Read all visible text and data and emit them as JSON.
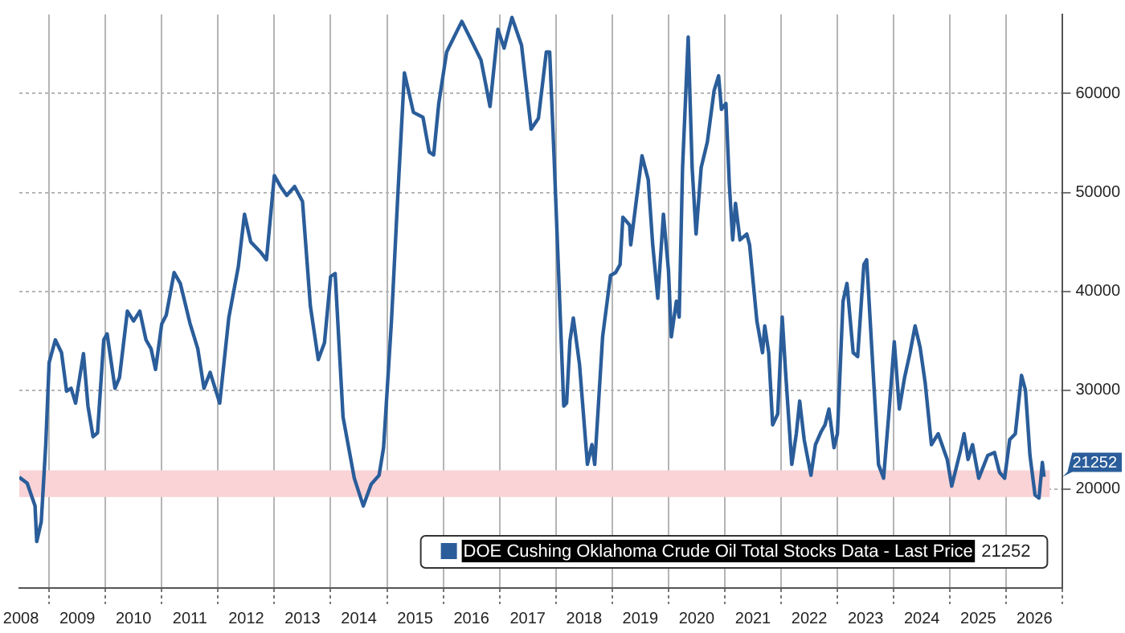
{
  "chart_data": {
    "type": "line",
    "x": [
      2008.47,
      2008.61,
      2008.75,
      2008.78,
      2008.86,
      2008.94,
      2009.0,
      2009.11,
      2009.22,
      2009.31,
      2009.39,
      2009.47,
      2009.61,
      2009.69,
      2009.78,
      2009.86,
      2009.97,
      2010.03,
      2010.17,
      2010.25,
      2010.39,
      2010.5,
      2010.61,
      2010.72,
      2010.81,
      2010.89,
      2011.0,
      2011.08,
      2011.22,
      2011.33,
      2011.5,
      2011.64,
      2011.75,
      2011.86,
      2012.03,
      2012.19,
      2012.36,
      2012.47,
      2012.58,
      2012.75,
      2012.86,
      2013.0,
      2013.11,
      2013.22,
      2013.36,
      2013.5,
      2013.64,
      2013.78,
      2013.89,
      2014.0,
      2014.08,
      2014.22,
      2014.42,
      2014.58,
      2014.72,
      2014.86,
      2014.94,
      2015.08,
      2015.19,
      2015.31,
      2015.47,
      2015.64,
      2015.75,
      2015.83,
      2015.92,
      2016.06,
      2016.19,
      2016.33,
      2016.47,
      2016.67,
      2016.83,
      2016.97,
      2017.08,
      2017.22,
      2017.39,
      2017.56,
      2017.69,
      2017.83,
      2017.89,
      2017.97,
      2018.14,
      2018.19,
      2018.25,
      2018.31,
      2018.42,
      2018.56,
      2018.64,
      2018.69,
      2018.83,
      2018.97,
      2019.06,
      2019.14,
      2019.19,
      2019.31,
      2019.33,
      2019.44,
      2019.53,
      2019.64,
      2019.72,
      2019.81,
      2019.91,
      2020.0,
      2020.05,
      2020.14,
      2020.19,
      2020.25,
      2020.35,
      2020.42,
      2020.49,
      2020.58,
      2020.69,
      2020.81,
      2020.89,
      2020.94,
      2021.02,
      2021.08,
      2021.14,
      2021.19,
      2021.27,
      2021.39,
      2021.44,
      2021.57,
      2021.67,
      2021.71,
      2021.78,
      2021.85,
      2021.94,
      2022.02,
      2022.08,
      2022.19,
      2022.27,
      2022.33,
      2022.41,
      2022.53,
      2022.61,
      2022.71,
      2022.78,
      2022.85,
      2022.94,
      2023.0,
      2023.1,
      2023.17,
      2023.28,
      2023.36,
      2023.47,
      2023.52,
      2023.61,
      2023.73,
      2023.82,
      2023.92,
      2024.01,
      2024.1,
      2024.19,
      2024.29,
      2024.38,
      2024.47,
      2024.56,
      2024.67,
      2024.79,
      2024.95,
      2025.03,
      2025.19,
      2025.25,
      2025.32,
      2025.4,
      2025.51,
      2025.67,
      2025.79,
      2025.88,
      2025.97,
      2026.06,
      2026.16,
      2026.27,
      2026.34,
      2026.42,
      2026.51,
      2026.58,
      2026.64,
      2026.67
    ],
    "series": [
      {
        "name": "DOE Cushing Oklahoma Crude Oil Total Stocks Data - Last Price",
        "color": "#2a5d9a",
        "values": [
          21200,
          20600,
          18300,
          14700,
          16700,
          24500,
          32800,
          35100,
          33800,
          29900,
          30200,
          28700,
          33700,
          28400,
          25300,
          25700,
          35100,
          35700,
          30200,
          31300,
          38000,
          37000,
          38000,
          35100,
          34200,
          32100,
          36700,
          37600,
          41900,
          40800,
          36800,
          34200,
          30200,
          31800,
          28700,
          37300,
          42500,
          47800,
          45000,
          44000,
          43200,
          51700,
          50600,
          49700,
          50600,
          49100,
          38500,
          33100,
          34800,
          41500,
          41800,
          27300,
          21100,
          18300,
          20500,
          21400,
          24200,
          37000,
          49400,
          62100,
          58100,
          57600,
          54100,
          53800,
          59000,
          64200,
          65700,
          67300,
          65700,
          63400,
          58700,
          66500,
          64600,
          67700,
          64900,
          56400,
          57500,
          64200,
          64200,
          53300,
          28400,
          28700,
          35000,
          37300,
          32600,
          22500,
          24500,
          22500,
          35400,
          41600,
          41900,
          42700,
          47500,
          46700,
          44700,
          49700,
          53700,
          51300,
          44700,
          39300,
          47800,
          42100,
          35400,
          39000,
          37400,
          52500,
          65700,
          52500,
          45800,
          52500,
          55100,
          60300,
          61800,
          58400,
          59000,
          50900,
          45200,
          48900,
          45200,
          45800,
          44700,
          37000,
          33800,
          36500,
          33800,
          26500,
          27600,
          37400,
          31800,
          22500,
          25600,
          28900,
          25000,
          21400,
          24500,
          25800,
          26500,
          28100,
          24200,
          25600,
          39000,
          40800,
          33800,
          33400,
          42700,
          43200,
          34300,
          22500,
          21100,
          28100,
          34900,
          28100,
          31200,
          33800,
          36500,
          34300,
          30700,
          24500,
          25600,
          23000,
          20300,
          24000,
          25600,
          23000,
          24500,
          21100,
          23400,
          23700,
          21700,
          21100,
          25000,
          25600,
          31500,
          30000,
          23400,
          19400,
          19100,
          22700,
          21252
        ]
      }
    ],
    "xlim": [
      2008.47,
      2027
    ],
    "xticks": [
      {
        "value": 2009,
        "label": null
      },
      {
        "value": 2010,
        "label": null
      },
      {
        "value": 2011,
        "label": null
      },
      {
        "value": 2012,
        "label": null
      },
      {
        "value": 2013,
        "label": null
      },
      {
        "value": 2014,
        "label": null
      },
      {
        "value": 2015,
        "label": null
      },
      {
        "value": 2016,
        "label": null
      },
      {
        "value": 2017,
        "label": null
      },
      {
        "value": 2018,
        "label": null
      },
      {
        "value": 2019,
        "label": null
      },
      {
        "value": 2020,
        "label": null
      },
      {
        "value": 2021,
        "label": null
      },
      {
        "value": 2022,
        "label": null
      },
      {
        "value": 2023,
        "label": null
      },
      {
        "value": 2024,
        "label": null
      },
      {
        "value": 2025,
        "label": null
      },
      {
        "value": 2026,
        "label": null
      },
      {
        "value": 2027,
        "label": null
      },
      {
        "value": 2008.5,
        "label": "2008"
      },
      {
        "value": 2009.5,
        "label": "2009"
      },
      {
        "value": 2010.5,
        "label": "2010"
      },
      {
        "value": 2011.5,
        "label": "2011"
      },
      {
        "value": 2012.5,
        "label": "2012"
      },
      {
        "value": 2013.5,
        "label": "2013"
      },
      {
        "value": 2014.5,
        "label": "2014"
      },
      {
        "value": 2015.5,
        "label": "2015"
      },
      {
        "value": 2016.5,
        "label": "2016"
      },
      {
        "value": 2017.5,
        "label": "2017"
      },
      {
        "value": 2018.5,
        "label": "2018"
      },
      {
        "value": 2019.5,
        "label": "2019"
      },
      {
        "value": 2020.5,
        "label": "2020"
      },
      {
        "value": 2021.5,
        "label": "2021"
      },
      {
        "value": 2022.5,
        "label": "2022"
      },
      {
        "value": 2023.5,
        "label": "2023"
      },
      {
        "value": 2024.5,
        "label": "2024"
      },
      {
        "value": 2025.5,
        "label": "2025"
      },
      {
        "value": 2026.5,
        "label": "2026"
      }
    ],
    "ylim": [
      10000,
      68000
    ],
    "yticks": [
      20000,
      30000,
      40000,
      50000,
      60000
    ],
    "bands": [
      {
        "axis": "y",
        "from": 19200,
        "to": 21900,
        "color": "#f9d3d6"
      }
    ],
    "annotations": [
      "21252",
      {
        "text": "21252",
        "x": 2026.67,
        "y": 21252
      }
    ],
    "grid": true,
    "legend": "bottom right",
    "marker": "none",
    "line_style": "solid"
  }
}
